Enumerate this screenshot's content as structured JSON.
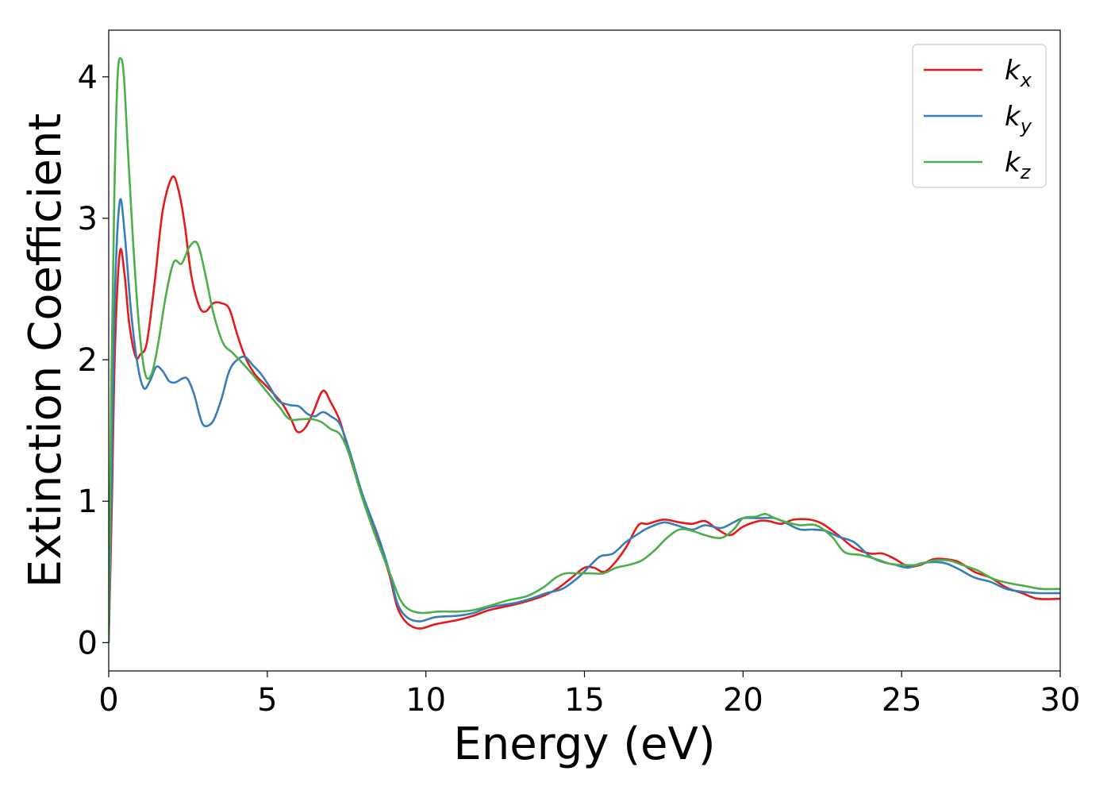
{
  "chart_data": {
    "type": "line",
    "title": "",
    "xlabel": "Energy (eV)",
    "ylabel": "Extinction Coefficient",
    "xlim": [
      0,
      30
    ],
    "ylim": [
      -0.2,
      4.33
    ],
    "xticks": [
      0,
      5,
      10,
      15,
      20,
      25,
      30
    ],
    "yticks": [
      0,
      1,
      2,
      3,
      4
    ],
    "grid": false,
    "legend_position": "top-right",
    "series": [
      {
        "name": "k",
        "subscript": "x",
        "color": "#e41a1c",
        "points": [
          [
            0,
            0
          ],
          [
            0.1,
            1.0
          ],
          [
            0.2,
            2.1
          ],
          [
            0.35,
            2.76
          ],
          [
            0.5,
            2.6
          ],
          [
            0.65,
            2.25
          ],
          [
            0.85,
            2.02
          ],
          [
            1.0,
            2.04
          ],
          [
            1.2,
            2.12
          ],
          [
            1.45,
            2.55
          ],
          [
            1.7,
            3.05
          ],
          [
            2.0,
            3.29
          ],
          [
            2.2,
            3.2
          ],
          [
            2.4,
            2.95
          ],
          [
            2.6,
            2.6
          ],
          [
            2.85,
            2.38
          ],
          [
            3.05,
            2.34
          ],
          [
            3.3,
            2.4
          ],
          [
            3.55,
            2.4
          ],
          [
            3.8,
            2.36
          ],
          [
            4.05,
            2.18
          ],
          [
            4.3,
            2.02
          ],
          [
            4.6,
            1.9
          ],
          [
            4.9,
            1.83
          ],
          [
            5.2,
            1.76
          ],
          [
            5.5,
            1.68
          ],
          [
            5.75,
            1.58
          ],
          [
            5.95,
            1.49
          ],
          [
            6.2,
            1.52
          ],
          [
            6.45,
            1.63
          ],
          [
            6.75,
            1.78
          ],
          [
            7.0,
            1.7
          ],
          [
            7.3,
            1.56
          ],
          [
            7.6,
            1.32
          ],
          [
            8.0,
            1.03
          ],
          [
            8.5,
            0.72
          ],
          [
            8.85,
            0.48
          ],
          [
            9.1,
            0.25
          ],
          [
            9.4,
            0.14
          ],
          [
            9.8,
            0.1
          ],
          [
            10.3,
            0.13
          ],
          [
            11.0,
            0.16
          ],
          [
            11.5,
            0.19
          ],
          [
            12.0,
            0.23
          ],
          [
            12.8,
            0.27
          ],
          [
            13.3,
            0.3
          ],
          [
            13.8,
            0.34
          ],
          [
            14.2,
            0.39
          ],
          [
            14.6,
            0.46
          ],
          [
            15.0,
            0.53
          ],
          [
            15.3,
            0.53
          ],
          [
            15.6,
            0.5
          ],
          [
            15.9,
            0.55
          ],
          [
            16.3,
            0.67
          ],
          [
            16.7,
            0.83
          ],
          [
            17.0,
            0.84
          ],
          [
            17.5,
            0.87
          ],
          [
            18.0,
            0.85
          ],
          [
            18.4,
            0.84
          ],
          [
            18.8,
            0.86
          ],
          [
            19.2,
            0.8
          ],
          [
            19.6,
            0.76
          ],
          [
            20.0,
            0.82
          ],
          [
            20.5,
            0.86
          ],
          [
            20.8,
            0.86
          ],
          [
            21.2,
            0.84
          ],
          [
            21.6,
            0.87
          ],
          [
            22.1,
            0.87
          ],
          [
            22.5,
            0.84
          ],
          [
            23.0,
            0.76
          ],
          [
            23.5,
            0.67
          ],
          [
            24.0,
            0.63
          ],
          [
            24.4,
            0.63
          ],
          [
            24.8,
            0.59
          ],
          [
            25.2,
            0.54
          ],
          [
            25.6,
            0.55
          ],
          [
            26.0,
            0.59
          ],
          [
            26.4,
            0.59
          ],
          [
            26.8,
            0.57
          ],
          [
            27.3,
            0.5
          ],
          [
            27.8,
            0.46
          ],
          [
            28.3,
            0.39
          ],
          [
            28.8,
            0.35
          ],
          [
            29.3,
            0.31
          ],
          [
            30.0,
            0.31
          ]
        ]
      },
      {
        "name": "k",
        "subscript": "y",
        "color": "#377eb8",
        "points": [
          [
            0,
            0
          ],
          [
            0.1,
            1.3
          ],
          [
            0.2,
            2.5
          ],
          [
            0.35,
            3.12
          ],
          [
            0.5,
            2.9
          ],
          [
            0.7,
            2.35
          ],
          [
            0.9,
            1.98
          ],
          [
            1.1,
            1.8
          ],
          [
            1.3,
            1.85
          ],
          [
            1.5,
            1.95
          ],
          [
            1.7,
            1.92
          ],
          [
            1.9,
            1.85
          ],
          [
            2.1,
            1.84
          ],
          [
            2.35,
            1.87
          ],
          [
            2.5,
            1.86
          ],
          [
            2.7,
            1.75
          ],
          [
            2.9,
            1.58
          ],
          [
            3.05,
            1.53
          ],
          [
            3.3,
            1.57
          ],
          [
            3.55,
            1.72
          ],
          [
            3.8,
            1.92
          ],
          [
            4.05,
            2.0
          ],
          [
            4.3,
            2.02
          ],
          [
            4.55,
            1.96
          ],
          [
            4.8,
            1.9
          ],
          [
            5.1,
            1.8
          ],
          [
            5.35,
            1.71
          ],
          [
            5.7,
            1.68
          ],
          [
            6.0,
            1.67
          ],
          [
            6.25,
            1.62
          ],
          [
            6.5,
            1.6
          ],
          [
            6.75,
            1.63
          ],
          [
            7.0,
            1.6
          ],
          [
            7.3,
            1.54
          ],
          [
            7.6,
            1.35
          ],
          [
            8.0,
            1.05
          ],
          [
            8.5,
            0.75
          ],
          [
            8.85,
            0.5
          ],
          [
            9.1,
            0.28
          ],
          [
            9.4,
            0.18
          ],
          [
            9.8,
            0.15
          ],
          [
            10.3,
            0.18
          ],
          [
            11.0,
            0.19
          ],
          [
            11.5,
            0.21
          ],
          [
            12.0,
            0.25
          ],
          [
            12.8,
            0.28
          ],
          [
            13.3,
            0.31
          ],
          [
            13.8,
            0.35
          ],
          [
            14.3,
            0.38
          ],
          [
            14.8,
            0.46
          ],
          [
            15.2,
            0.55
          ],
          [
            15.5,
            0.61
          ],
          [
            15.9,
            0.63
          ],
          [
            16.3,
            0.71
          ],
          [
            16.7,
            0.77
          ],
          [
            17.0,
            0.81
          ],
          [
            17.5,
            0.85
          ],
          [
            17.9,
            0.83
          ],
          [
            18.4,
            0.8
          ],
          [
            18.8,
            0.83
          ],
          [
            19.3,
            0.81
          ],
          [
            19.7,
            0.85
          ],
          [
            20.0,
            0.88
          ],
          [
            20.5,
            0.88
          ],
          [
            21.0,
            0.88
          ],
          [
            21.4,
            0.84
          ],
          [
            21.8,
            0.8
          ],
          [
            22.2,
            0.8
          ],
          [
            22.6,
            0.79
          ],
          [
            23.0,
            0.75
          ],
          [
            23.5,
            0.71
          ],
          [
            24.0,
            0.61
          ],
          [
            24.4,
            0.57
          ],
          [
            24.8,
            0.55
          ],
          [
            25.2,
            0.53
          ],
          [
            25.6,
            0.56
          ],
          [
            26.0,
            0.57
          ],
          [
            26.4,
            0.56
          ],
          [
            26.8,
            0.52
          ],
          [
            27.3,
            0.46
          ],
          [
            27.8,
            0.43
          ],
          [
            28.3,
            0.38
          ],
          [
            28.8,
            0.36
          ],
          [
            29.3,
            0.35
          ],
          [
            30.0,
            0.35
          ]
        ]
      },
      {
        "name": "k",
        "subscript": "z",
        "color": "#4daf4a",
        "points": [
          [
            0,
            0
          ],
          [
            0.08,
            1.8
          ],
          [
            0.18,
            3.2
          ],
          [
            0.28,
            4.0
          ],
          [
            0.38,
            4.13
          ],
          [
            0.48,
            4.0
          ],
          [
            0.6,
            3.5
          ],
          [
            0.75,
            2.9
          ],
          [
            0.95,
            2.25
          ],
          [
            1.15,
            1.9
          ],
          [
            1.35,
            1.9
          ],
          [
            1.55,
            2.1
          ],
          [
            1.8,
            2.45
          ],
          [
            2.05,
            2.69
          ],
          [
            2.3,
            2.68
          ],
          [
            2.55,
            2.8
          ],
          [
            2.8,
            2.82
          ],
          [
            3.05,
            2.6
          ],
          [
            3.3,
            2.33
          ],
          [
            3.6,
            2.12
          ],
          [
            3.9,
            2.05
          ],
          [
            4.2,
            1.98
          ],
          [
            4.6,
            1.88
          ],
          [
            5.0,
            1.77
          ],
          [
            5.4,
            1.66
          ],
          [
            5.7,
            1.58
          ],
          [
            6.1,
            1.58
          ],
          [
            6.4,
            1.58
          ],
          [
            6.7,
            1.56
          ],
          [
            7.0,
            1.51
          ],
          [
            7.3,
            1.47
          ],
          [
            7.6,
            1.32
          ],
          [
            8.0,
            1.02
          ],
          [
            8.5,
            0.7
          ],
          [
            8.9,
            0.47
          ],
          [
            9.2,
            0.3
          ],
          [
            9.5,
            0.23
          ],
          [
            9.9,
            0.21
          ],
          [
            10.4,
            0.22
          ],
          [
            11.0,
            0.22
          ],
          [
            11.5,
            0.23
          ],
          [
            12.0,
            0.26
          ],
          [
            12.6,
            0.3
          ],
          [
            13.2,
            0.33
          ],
          [
            13.7,
            0.39
          ],
          [
            14.1,
            0.46
          ],
          [
            14.4,
            0.49
          ],
          [
            14.8,
            0.49
          ],
          [
            15.2,
            0.49
          ],
          [
            15.6,
            0.49
          ],
          [
            16.0,
            0.53
          ],
          [
            16.4,
            0.55
          ],
          [
            16.8,
            0.58
          ],
          [
            17.2,
            0.65
          ],
          [
            17.6,
            0.74
          ],
          [
            18.0,
            0.8
          ],
          [
            18.4,
            0.79
          ],
          [
            18.8,
            0.76
          ],
          [
            19.3,
            0.74
          ],
          [
            19.7,
            0.8
          ],
          [
            20.0,
            0.88
          ],
          [
            20.4,
            0.89
          ],
          [
            20.7,
            0.91
          ],
          [
            21.0,
            0.88
          ],
          [
            21.4,
            0.85
          ],
          [
            21.8,
            0.83
          ],
          [
            22.3,
            0.83
          ],
          [
            22.8,
            0.75
          ],
          [
            23.2,
            0.64
          ],
          [
            23.7,
            0.62
          ],
          [
            24.2,
            0.59
          ],
          [
            24.6,
            0.56
          ],
          [
            25.0,
            0.55
          ],
          [
            25.5,
            0.55
          ],
          [
            26.0,
            0.58
          ],
          [
            26.5,
            0.58
          ],
          [
            26.9,
            0.55
          ],
          [
            27.4,
            0.51
          ],
          [
            27.9,
            0.45
          ],
          [
            28.4,
            0.42
          ],
          [
            28.9,
            0.4
          ],
          [
            29.4,
            0.38
          ],
          [
            30.0,
            0.38
          ]
        ]
      }
    ]
  }
}
